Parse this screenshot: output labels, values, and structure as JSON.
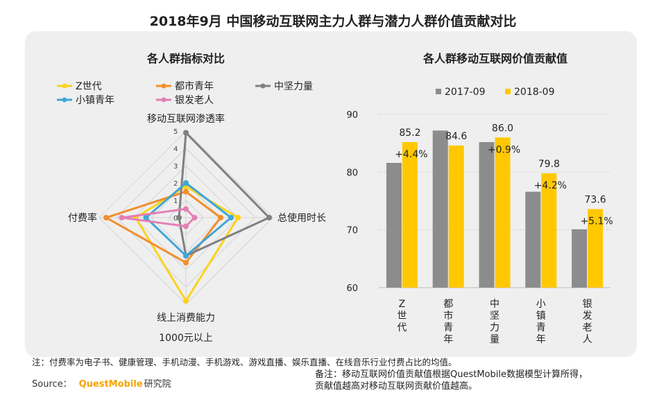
{
  "title": "2018年9月 中国移动互联网主力人群与潜力人群价值贡献对比",
  "colors": {
    "panel_bg": "#efefef",
    "gray": "#8c8c8c",
    "yellow": "#ffc800",
    "z_gen": "#fbd31a",
    "urban_youth": "#f28e2b",
    "backbone": "#7f7f7f",
    "town_youth": "#3fa6d8",
    "silver": "#e47fb4"
  },
  "chart_data": [
    {
      "type": "radar",
      "title": "各人群指标对比",
      "axes": [
        "移动互联网渗透率",
        "总使用时长",
        "线上消费能力",
        "付费率"
      ],
      "axis_sublabels": [
        "",
        "",
        "1000元以上",
        ""
      ],
      "ticks": [
        "0",
        "1",
        "2",
        "3",
        "4",
        "5"
      ],
      "range": [
        0,
        5
      ],
      "legend": [
        [
          "Z世代",
          "都市青年",
          "中坚力量"
        ],
        [
          "小镇青年",
          "银发老人"
        ]
      ],
      "series": [
        {
          "name": "Z世代",
          "color": "#fbd31a",
          "values": [
            1.8,
            3.0,
            4.8,
            2.9
          ]
        },
        {
          "name": "都市青年",
          "color": "#f28e2b",
          "values": [
            1.5,
            2.0,
            2.6,
            4.6
          ]
        },
        {
          "name": "中坚力量",
          "color": "#7f7f7f",
          "values": [
            4.9,
            4.8,
            2.2,
            0.4
          ]
        },
        {
          "name": "小镇青年",
          "color": "#3fa6d8",
          "values": [
            2.0,
            2.6,
            2.2,
            2.3
          ]
        },
        {
          "name": "银发老人",
          "color": "#e47fb4",
          "values": [
            0.5,
            0.5,
            0.5,
            3.7
          ]
        }
      ]
    },
    {
      "type": "bar",
      "title": "各人群移动互联网价值贡献值",
      "categories": [
        "Z世代",
        "都市青年",
        "中坚力量",
        "小镇青年",
        "银发老人"
      ],
      "series": [
        {
          "name": "2017-09",
          "color": "#8c8c8c",
          "values": [
            81.6,
            87.2,
            85.2,
            76.6,
            70.1
          ]
        },
        {
          "name": "2018-09",
          "color": "#ffc800",
          "values": [
            85.2,
            84.6,
            86.0,
            79.8,
            73.6
          ]
        }
      ],
      "data_labels": [
        "85.2",
        "84.6",
        "86.0",
        "79.8",
        "73.6"
      ],
      "change_labels": [
        "+4.4%",
        "",
        "+0.9%",
        "+4.2%",
        "+5.1%"
      ],
      "ylim": [
        60,
        90
      ],
      "yticks": [
        "60",
        "70",
        "80",
        "90"
      ],
      "grid": true,
      "legend_position": "top"
    }
  ],
  "footnote": "注：付费率为电子书、健康管理、手机动漫、手机游戏、游戏直播、娱乐直播、在线音乐行业付费占比的均值。",
  "source": {
    "label": "Source：",
    "brand": "QuestMobile",
    "brand_suffix": "研究院"
  },
  "remark": [
    "备注：移动互联网价值贡献值根据QuestMobile数据模型计算所得，",
    "贡献值越高对移动互联网贡献价值越高。"
  ]
}
